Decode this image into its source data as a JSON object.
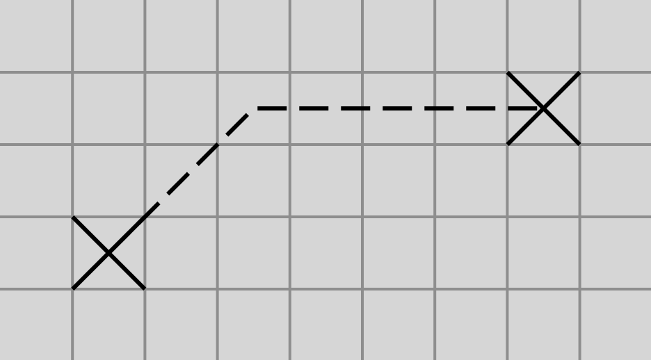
{
  "board": {
    "columns": 9,
    "rows": 5,
    "colors": {
      "background": "#d6d6d6",
      "grid": "#8e8e8e",
      "marker": "#000000",
      "path": "#000000"
    }
  },
  "markers": [
    {
      "name": "start-x-marker",
      "col": 1.5,
      "row": 3.5
    },
    {
      "name": "end-x-marker",
      "col": 7.5,
      "row": 1.5
    }
  ],
  "path": {
    "style": "dashed",
    "points": [
      {
        "col": 1.5,
        "row": 3.5
      },
      {
        "col": 3.5,
        "row": 1.5
      },
      {
        "col": 7.5,
        "row": 1.5
      }
    ]
  }
}
